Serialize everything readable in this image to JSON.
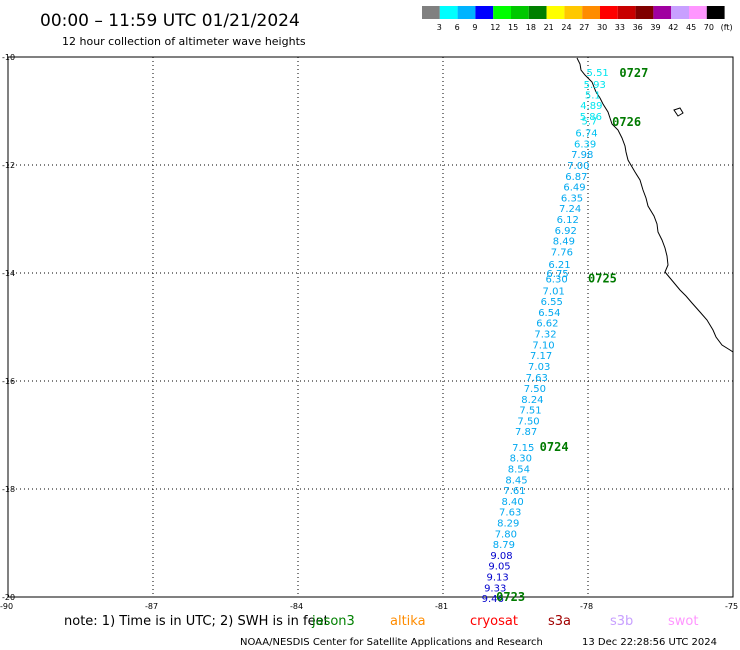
{
  "title": "00:00 – 11:59 UTC 01/21/2024",
  "subtitle": "12 hour collection of altimeter wave heights",
  "legend": {
    "labels": [
      "3",
      "6",
      "9",
      "12",
      "15",
      "18",
      "21",
      "24",
      "27",
      "30",
      "33",
      "36",
      "39",
      "42",
      "45",
      "70",
      "(ft)"
    ],
    "colors": [
      "#808080",
      "#00ffff",
      "#00b4ff",
      "#0000ff",
      "#00ff00",
      "#00c800",
      "#008000",
      "#ffff00",
      "#ffc800",
      "#ff8c00",
      "#ff0000",
      "#c80000",
      "#800000",
      "#a000a0",
      "#c8a0ff",
      "#ff96ff",
      "#000000"
    ]
  },
  "axes": {
    "lon_labels": [
      "-90",
      "-87",
      "-84",
      "-81",
      "-78",
      "-75"
    ],
    "lat_labels": [
      "-10",
      "-12",
      "-14",
      "-16",
      "-18",
      "-20"
    ]
  },
  "track": {
    "points": [
      {
        "label": "5.51",
        "lon": -77.8,
        "lat": -10.28,
        "color": "#00e5ee"
      },
      {
        "label": "5.93",
        "lon": -77.86,
        "lat": -10.5,
        "color": "#00e5ee"
      },
      {
        "label": "5.1",
        "lon": -77.9,
        "lat": -10.69,
        "color": "#00e5ee"
      },
      {
        "label": "4.89",
        "lon": -77.93,
        "lat": -10.89,
        "color": "#00e5ee"
      },
      {
        "label": "5.86",
        "lon": -77.94,
        "lat": -11.09,
        "color": "#00e5ee"
      },
      {
        "label": "5.7",
        "lon": -77.97,
        "lat": -11.18,
        "color": "#00e5ee"
      },
      {
        "label": "6.74",
        "lon": -78.03,
        "lat": -11.4,
        "color": "#00c0f0"
      },
      {
        "label": "6.39",
        "lon": -78.06,
        "lat": -11.6,
        "color": "#00c0f0"
      },
      {
        "label": "7.98",
        "lon": -78.12,
        "lat": -11.8,
        "color": "#00a8f0"
      },
      {
        "label": "7.00",
        "lon": -78.2,
        "lat": -12.0,
        "color": "#00a8f0"
      },
      {
        "label": "6.87",
        "lon": -78.24,
        "lat": -12.2,
        "color": "#00a8f0"
      },
      {
        "label": "6.49",
        "lon": -78.28,
        "lat": -12.4,
        "color": "#00a8f0"
      },
      {
        "label": "6.35",
        "lon": -78.33,
        "lat": -12.6,
        "color": "#00a8f0"
      },
      {
        "label": "7.24",
        "lon": -78.37,
        "lat": -12.8,
        "color": "#00a8f0"
      },
      {
        "label": "6.12",
        "lon": -78.42,
        "lat": -13.0,
        "color": "#00a8f0"
      },
      {
        "label": "6.92",
        "lon": -78.46,
        "lat": -13.2,
        "color": "#00a8f0"
      },
      {
        "label": "8.49",
        "lon": -78.5,
        "lat": -13.4,
        "color": "#00a8f0"
      },
      {
        "label": "7.76",
        "lon": -78.54,
        "lat": -13.6,
        "color": "#00a8f0"
      },
      {
        "label": "6.21",
        "lon": -78.59,
        "lat": -13.83,
        "color": "#00a8f0"
      },
      {
        "label": "6.75",
        "lon": -78.63,
        "lat": -14.0,
        "color": "#00a8f0"
      },
      {
        "label": "6.30",
        "lon": -78.65,
        "lat": -14.1,
        "color": "#00a8f0"
      },
      {
        "label": "7.01",
        "lon": -78.71,
        "lat": -14.32,
        "color": "#00a8f0"
      },
      {
        "label": "6.55",
        "lon": -78.75,
        "lat": -14.52,
        "color": "#00a8f0"
      },
      {
        "label": "6.54",
        "lon": -78.8,
        "lat": -14.72,
        "color": "#00a8f0"
      },
      {
        "label": "6.62",
        "lon": -78.84,
        "lat": -14.92,
        "color": "#00a8f0"
      },
      {
        "label": "7.32",
        "lon": -78.88,
        "lat": -15.12,
        "color": "#00a8f0"
      },
      {
        "label": "7.10",
        "lon": -78.92,
        "lat": -15.32,
        "color": "#00a8f0"
      },
      {
        "label": "7.17",
        "lon": -78.97,
        "lat": -15.52,
        "color": "#00a8f0"
      },
      {
        "label": "7.03",
        "lon": -79.01,
        "lat": -15.72,
        "color": "#00a8f0"
      },
      {
        "label": "7.63",
        "lon": -79.06,
        "lat": -15.93,
        "color": "#00a8f0"
      },
      {
        "label": "7.50",
        "lon": -79.1,
        "lat": -16.13,
        "color": "#00a8f0"
      },
      {
        "label": "8.24",
        "lon": -79.15,
        "lat": -16.33,
        "color": "#00a8f0"
      },
      {
        "label": "7.51",
        "lon": -79.19,
        "lat": -16.53,
        "color": "#00a8f0"
      },
      {
        "label": "7.50",
        "lon": -79.23,
        "lat": -16.73,
        "color": "#00a8f0"
      },
      {
        "label": "7.87",
        "lon": -79.28,
        "lat": -16.93,
        "color": "#00a8f0"
      },
      {
        "label": "7.15",
        "lon": -79.34,
        "lat": -17.22,
        "color": "#00a8f0"
      },
      {
        "label": "8.30",
        "lon": -79.39,
        "lat": -17.42,
        "color": "#00a8f0"
      },
      {
        "label": "8.54",
        "lon": -79.43,
        "lat": -17.62,
        "color": "#00a8f0"
      },
      {
        "label": "8.45",
        "lon": -79.48,
        "lat": -17.82,
        "color": "#00a8f0"
      },
      {
        "label": "7.61",
        "lon": -79.52,
        "lat": -18.02,
        "color": "#00a8f0"
      },
      {
        "label": "8.40",
        "lon": -79.56,
        "lat": -18.22,
        "color": "#00a8f0"
      },
      {
        "label": "7.63",
        "lon": -79.61,
        "lat": -18.42,
        "color": "#00a8f0"
      },
      {
        "label": "8.29",
        "lon": -79.65,
        "lat": -18.62,
        "color": "#00a8f0"
      },
      {
        "label": "7.80",
        "lon": -79.7,
        "lat": -18.82,
        "color": "#00a8f0"
      },
      {
        "label": "8.79",
        "lon": -79.74,
        "lat": -19.02,
        "color": "#00a8f0"
      },
      {
        "label": "9.08",
        "lon": -79.79,
        "lat": -19.22,
        "color": "#0000cd"
      },
      {
        "label": "9.05",
        "lon": -79.83,
        "lat": -19.42,
        "color": "#0000cd"
      },
      {
        "label": "9.13",
        "lon": -79.87,
        "lat": -19.62,
        "color": "#0000cd"
      },
      {
        "label": "9.33",
        "lon": -79.92,
        "lat": -19.82,
        "color": "#0000cd"
      },
      {
        "label": "9.46",
        "lon": -79.97,
        "lat": -20.02,
        "color": "#0000cd"
      }
    ]
  },
  "time_tags": [
    {
      "label": "0727",
      "lon": -77.35,
      "lat": -10.3
    },
    {
      "label": "0726",
      "lon": -77.5,
      "lat": -11.2
    },
    {
      "label": "0725",
      "lon": -78.0,
      "lat": -14.1
    },
    {
      "label": "0724",
      "lon": -79.0,
      "lat": -17.22
    },
    {
      "label": "0723",
      "lon": -79.9,
      "lat": -20.0
    }
  ],
  "note": "note:  1) Time is in UTC;  2) SWH is in feet",
  "satellites": [
    {
      "name": "jason3",
      "color": "#008000"
    },
    {
      "name": "altika",
      "color": "#ff8c00"
    },
    {
      "name": "cryosat",
      "color": "#ff0000"
    },
    {
      "name": "s3a",
      "color": "#a00000"
    },
    {
      "name": "s3b",
      "color": "#c8a0ff"
    },
    {
      "name": "swot",
      "color": "#ff96ff"
    }
  ],
  "credit": "NOAA/NESDIS Center for Satellite Applications and Research",
  "timestamp": "13 Dec 22:28:56 UTC 2024"
}
